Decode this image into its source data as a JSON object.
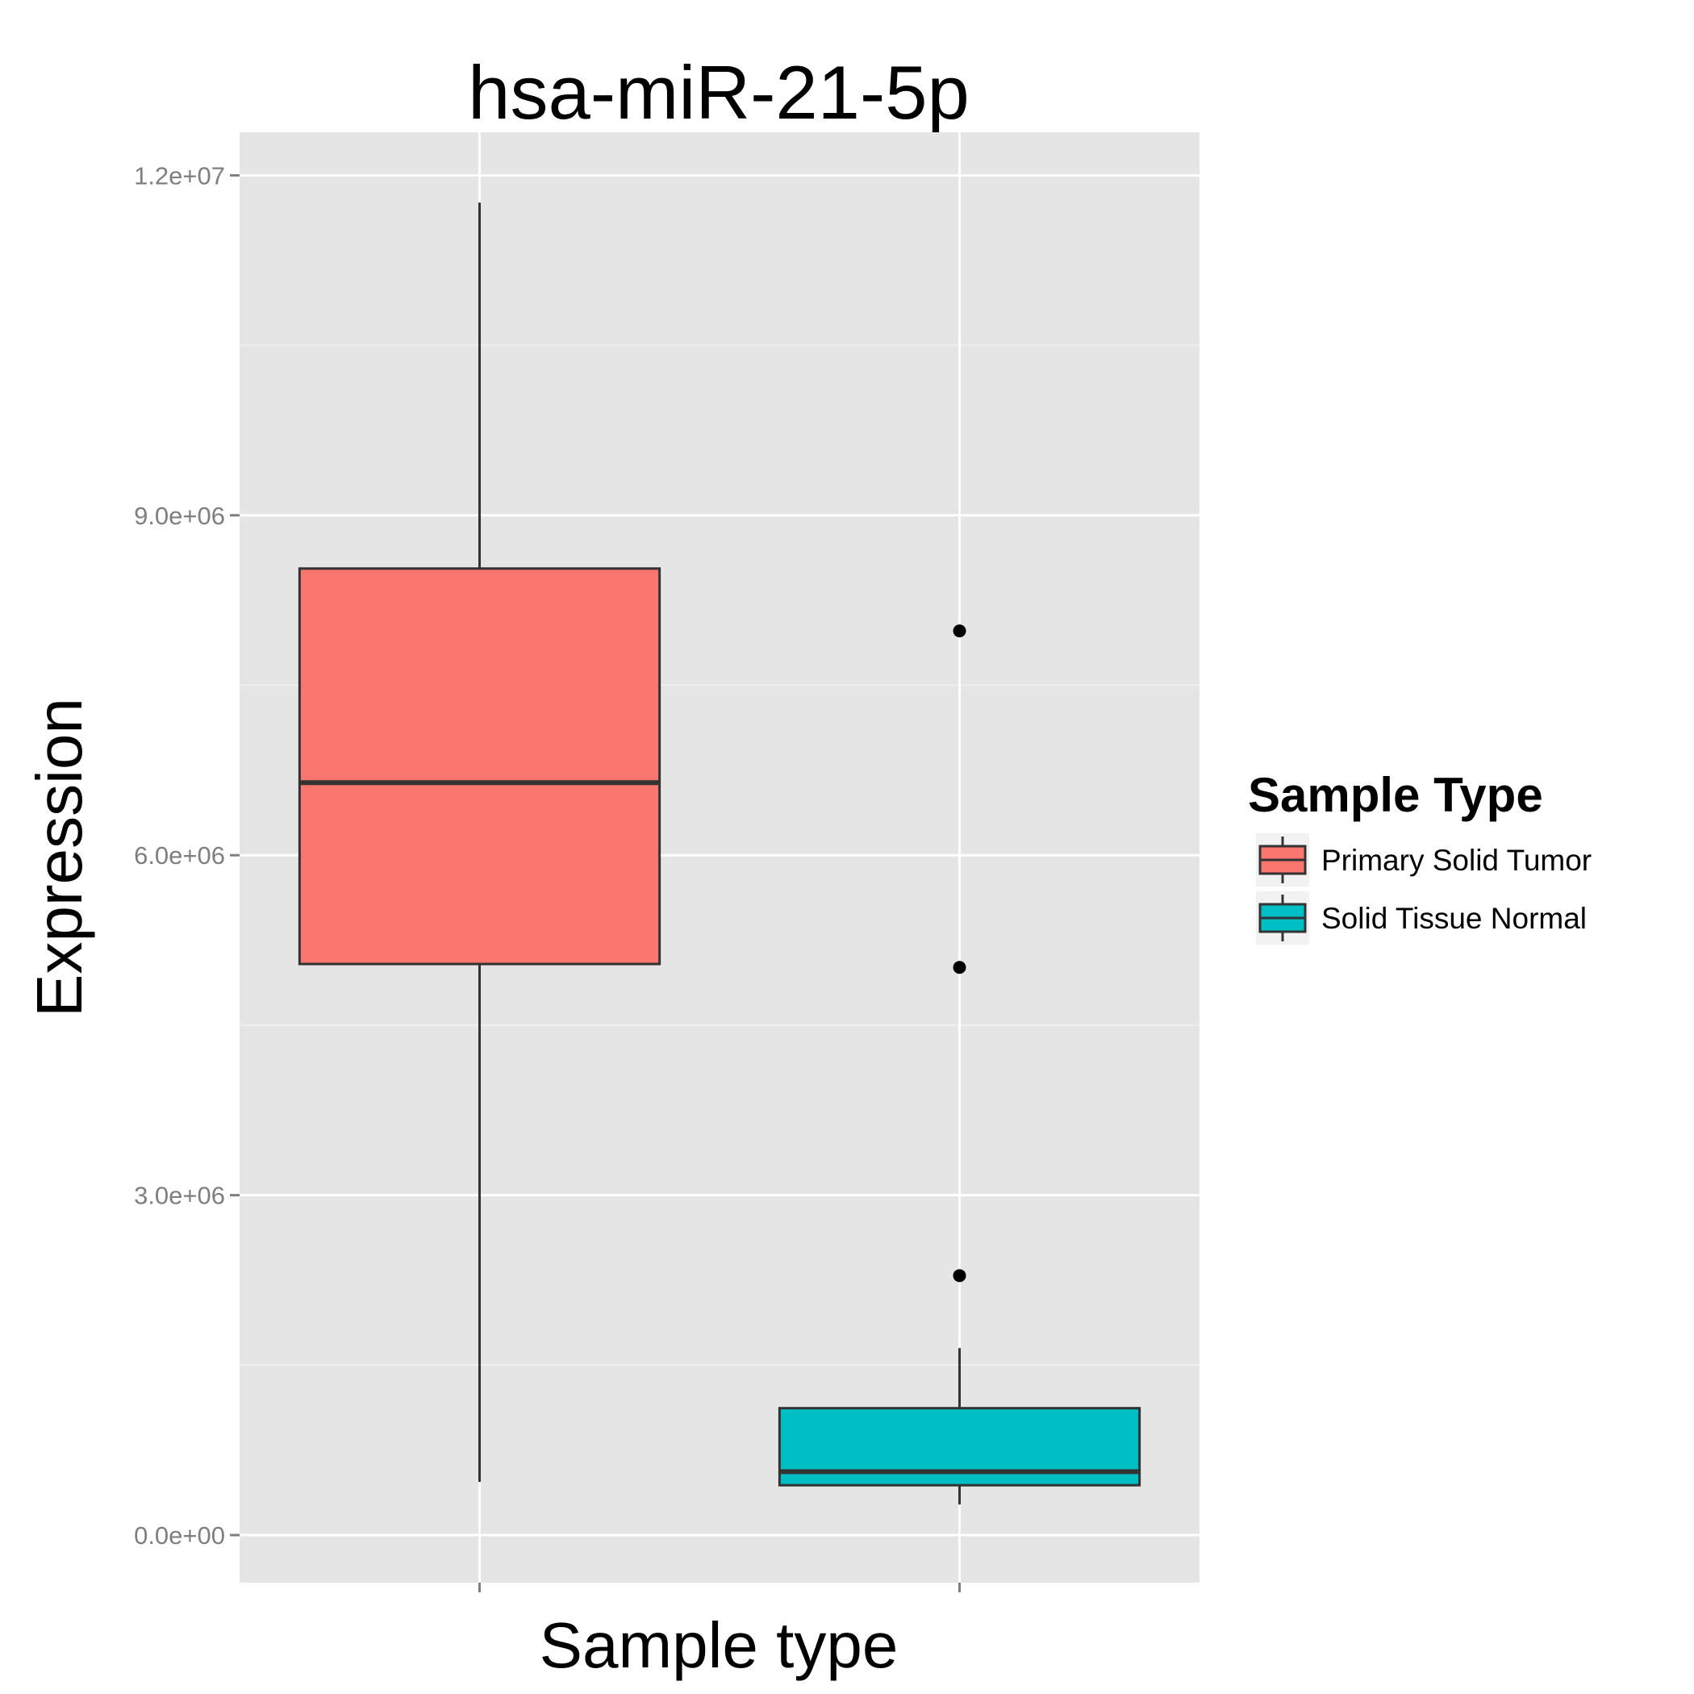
{
  "chart_data": {
    "type": "box",
    "title": "hsa-miR-21-5p",
    "xlabel": "Sample type",
    "ylabel": "Expression",
    "ylim": [
      -420000,
      12380000
    ],
    "yticks": [
      0,
      3000000,
      6000000,
      9000000,
      12000000
    ],
    "ytick_labels": [
      "0.0e+00",
      "3.0e+06",
      "6.0e+06",
      "9.0e+06",
      "1.2e+07"
    ],
    "grid": true,
    "legend": {
      "title": "Sample Type",
      "position": "right",
      "entries": [
        "Primary Solid Tumor",
        "Solid Tissue Normal"
      ]
    },
    "series": [
      {
        "name": "Primary Solid Tumor",
        "color": "#F8766D",
        "whisker_low": 470000,
        "q1": 5040000,
        "median": 6640000,
        "q3": 8530000,
        "whisker_high": 11760000,
        "outliers": []
      },
      {
        "name": "Solid Tissue Normal",
        "color": "#00BFC4",
        "whisker_low": 270000,
        "q1": 440000,
        "median": 560000,
        "q3": 1120000,
        "whisker_high": 1650000,
        "outliers": [
          2290000,
          5010000,
          7980000
        ]
      }
    ]
  }
}
